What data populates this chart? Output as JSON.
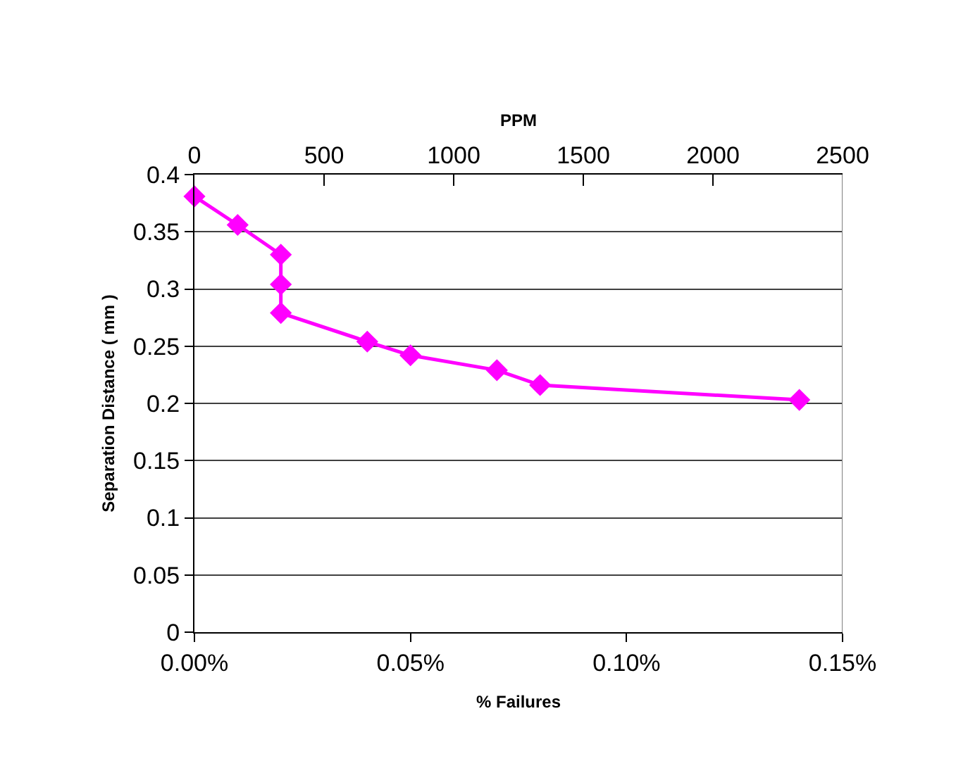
{
  "chart_data": {
    "type": "line",
    "xlabel": "% Failures",
    "ylabel": "Separation Distance ( mm )",
    "x2label": "PPM",
    "x": [
      0,
      0.01,
      0.02,
      0.02,
      0.02,
      0.04,
      0.05,
      0.07,
      0.08,
      0.14
    ],
    "series": [
      {
        "color": "#ff00ff",
        "values": [
          0.381,
          0.356,
          0.33,
          0.304,
          0.279,
          0.254,
          0.242,
          0.229,
          0.216,
          0.203
        ]
      }
    ],
    "xlim": [
      0,
      0.15
    ],
    "xticks": [
      {
        "value": 0,
        "label": "0.00%"
      },
      {
        "value": 0.05,
        "label": "0.05%"
      },
      {
        "value": 0.1,
        "label": "0.10%"
      },
      {
        "value": 0.15,
        "label": "0.15%"
      }
    ],
    "x2lim": [
      0,
      2500
    ],
    "x2ticks": [
      0,
      500,
      1000,
      1500,
      2000,
      2500
    ],
    "ylim": [
      0,
      0.4
    ],
    "yticks": [
      0,
      0.05,
      0.1,
      0.15,
      0.2,
      0.25,
      0.3,
      0.35,
      0.4
    ],
    "grid": "y",
    "marker": "diamond",
    "line_style": "solid"
  }
}
